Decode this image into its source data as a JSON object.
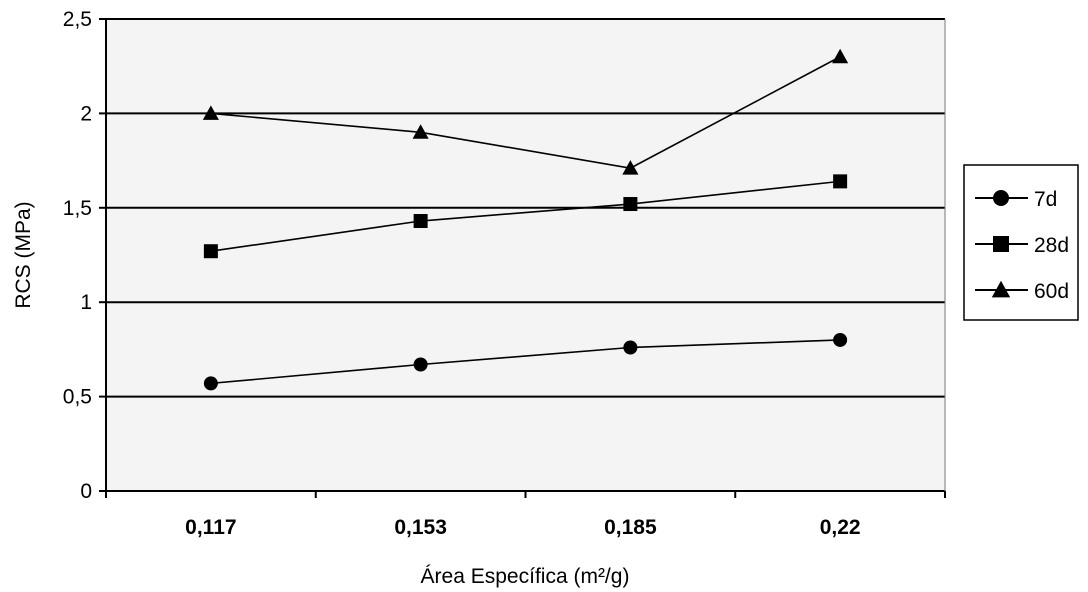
{
  "chart_data": {
    "type": "line",
    "title": "",
    "xlabel": "Área Específica (m²/g)",
    "ylabel": "RCS (MPa)",
    "categories": [
      "0,117",
      "0,153",
      "0,185",
      "0,22"
    ],
    "ylim": [
      0,
      2.5
    ],
    "yticks": [
      "0",
      "0,5",
      "1",
      "1,5",
      "2",
      "2,5"
    ],
    "grid": true,
    "legend_position": "right",
    "series": [
      {
        "name": "7d",
        "marker": "circle",
        "values": [
          0.57,
          0.67,
          0.76,
          0.8
        ]
      },
      {
        "name": "28d",
        "marker": "square",
        "values": [
          1.27,
          1.43,
          1.52,
          1.64
        ]
      },
      {
        "name": "60d",
        "marker": "triangle",
        "values": [
          2.0,
          1.9,
          1.71,
          2.3
        ]
      }
    ]
  }
}
